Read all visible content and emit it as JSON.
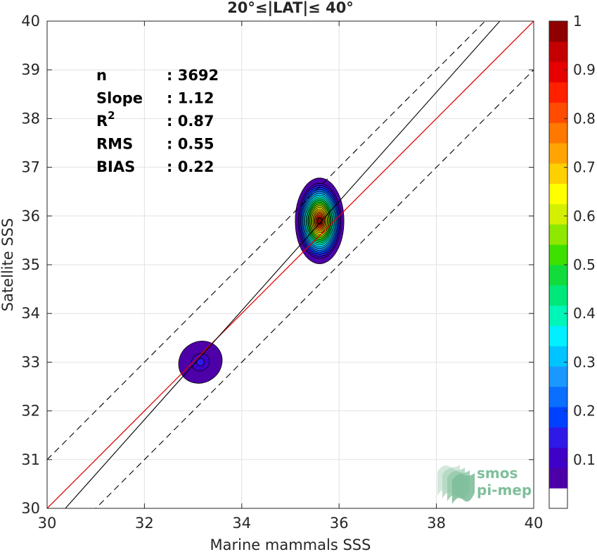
{
  "chart_data": {
    "type": "heatmap",
    "title": "20°≤|LAT|≤ 40°",
    "xlabel": "Marine mammals SSS",
    "ylabel": "Satellite SSS",
    "xlim": [
      30,
      40
    ],
    "ylim": [
      30,
      40
    ],
    "x_ticks": [
      "30",
      "32",
      "34",
      "36",
      "38",
      "40"
    ],
    "y_ticks": [
      "30",
      "31",
      "32",
      "33",
      "34",
      "35",
      "36",
      "37",
      "38",
      "39",
      "40"
    ],
    "grid": true,
    "stats": [
      {
        "label": "n",
        "value": ": 3692"
      },
      {
        "label": "Slope",
        "value": ": 1.12"
      },
      {
        "label": "R",
        "sup": "2",
        "value": ": 0.87"
      },
      {
        "label": "RMS",
        "value": ": 0.55"
      },
      {
        "label": "BIAS",
        "value": ": 0.22"
      }
    ],
    "lines": {
      "one_to_one": {
        "color": "#e00000",
        "slope": 1,
        "intercept": 0
      },
      "regression": {
        "color": "#000000",
        "slope": 1.12,
        "intercept": -4.02
      },
      "bounds_dashed": {
        "color": "#000000",
        "offset": 1.0
      }
    },
    "density_clusters": [
      {
        "center": [
          35.6,
          35.9
        ],
        "sx": 0.5,
        "sy": 0.88,
        "peak": 1.0
      },
      {
        "center": [
          33.15,
          33.0
        ],
        "sx": 0.46,
        "sy": 0.42,
        "peak": 0.16,
        "rotate": -35
      }
    ],
    "colorbar": {
      "ticks": [
        "0.1",
        "0.2",
        "0.3",
        "0.4",
        "0.5",
        "0.6",
        "0.7",
        "0.8",
        "0.9",
        "1"
      ],
      "range": [
        0,
        1
      ],
      "levels": [
        "#ffffff",
        "#4d00a8",
        "#3f00c8",
        "#2e19e6",
        "#0040ff",
        "#0a6eff",
        "#1a98ff",
        "#00c4ff",
        "#00f0ff",
        "#00f5b8",
        "#00e87a",
        "#11dc3c",
        "#3ee000",
        "#8ee800",
        "#d4f000",
        "#ffff00",
        "#ffd000",
        "#ffa400",
        "#ff7800",
        "#ff4c00",
        "#ff2000",
        "#e80000",
        "#c40000",
        "#8f0000"
      ]
    },
    "logo": {
      "line1": "smos",
      "line2": "pi-mep"
    }
  }
}
